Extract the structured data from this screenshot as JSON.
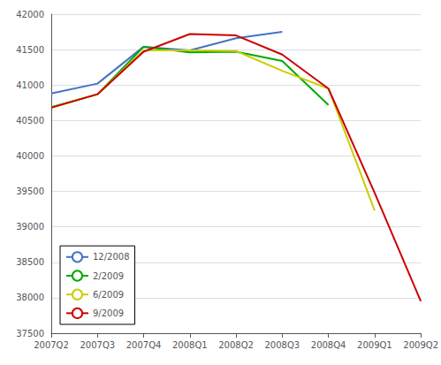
{
  "chart_data": {
    "type": "line",
    "categories": [
      "2007Q2",
      "2007Q3",
      "2007Q4",
      "2008Q1",
      "2008Q2",
      "2008Q3",
      "2008Q4",
      "2009Q1",
      "2009Q2"
    ],
    "series": [
      {
        "name": "12/2008",
        "color": "#4472C4",
        "values": [
          40880,
          41020,
          41540,
          41490,
          41660,
          41750,
          null,
          null,
          null
        ]
      },
      {
        "name": "2/2009",
        "color": "#00AA00",
        "values": [
          40690,
          40870,
          41540,
          41460,
          41470,
          41340,
          40720,
          null,
          null
        ]
      },
      {
        "name": "6/2009",
        "color": "#CCCC00",
        "values": [
          40680,
          40870,
          41490,
          41490,
          41480,
          41200,
          40950,
          39230,
          null
        ]
      },
      {
        "name": "9/2009",
        "color": "#CC0000",
        "values": [
          40680,
          40870,
          41470,
          41720,
          41700,
          41430,
          40950,
          39480,
          37950
        ]
      }
    ],
    "ylim": [
      37500,
      42000
    ],
    "yticks": [
      37500,
      38000,
      38500,
      39000,
      39500,
      40000,
      40500,
      41000,
      41500,
      42000
    ],
    "grid": true,
    "legend": "lower left"
  }
}
